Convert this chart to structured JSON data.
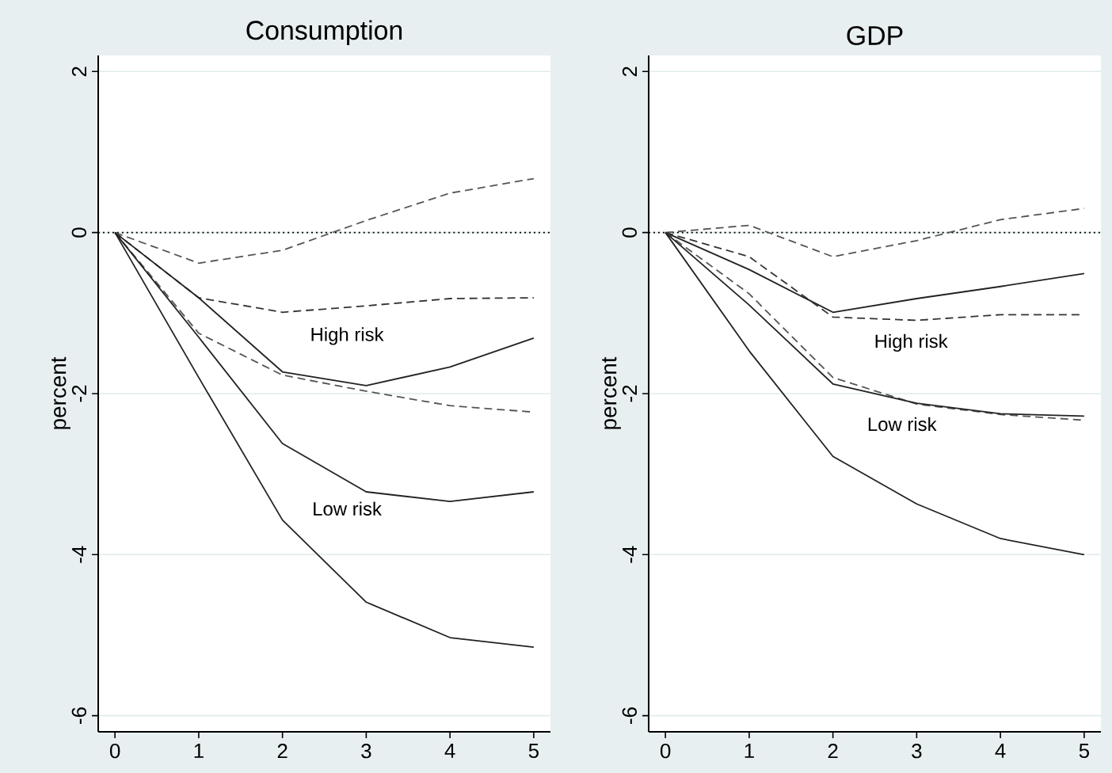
{
  "chart_data": [
    {
      "type": "line",
      "title": "Consumption",
      "ylabel": "percent",
      "x": [
        0,
        1,
        2,
        3,
        4,
        5
      ],
      "xlim": [
        -0.2,
        5.2
      ],
      "ylim": [
        -6.2,
        2.2
      ],
      "xticks": [
        0,
        1,
        2,
        3,
        4,
        5
      ],
      "yticks": [
        -6,
        -4,
        -2,
        0,
        2
      ],
      "grid": "y",
      "series": [
        {
          "color": "#555555",
          "line_style": "dashed",
          "values": [
            0,
            -0.38,
            -0.22,
            0.15,
            0.49,
            0.67
          ]
        },
        {
          "color": "#333333",
          "line_style": "dashed",
          "values": [
            0,
            -0.81,
            -0.99,
            -0.91,
            -0.82,
            -0.81
          ]
        },
        {
          "color": "#222222",
          "line_style": "solid",
          "values": [
            0,
            -0.81,
            -1.73,
            -1.9,
            -1.67,
            -1.31
          ]
        },
        {
          "color": "#555555",
          "line_style": "dashed",
          "values": [
            0,
            -1.25,
            -1.77,
            -1.97,
            -2.15,
            -2.23
          ]
        },
        {
          "color": "#222222",
          "line_style": "solid",
          "values": [
            0,
            -1.3,
            -2.62,
            -3.22,
            -3.34,
            -3.22
          ]
        },
        {
          "color": "#222222",
          "line_style": "solid",
          "values": [
            0,
            -1.8,
            -3.57,
            -4.59,
            -5.03,
            -5.15
          ]
        }
      ],
      "ref_lines": [
        {
          "axis": "y",
          "value": 0,
          "color": "#000000",
          "line_style": "dotted"
        }
      ],
      "annotations": [
        "High risk",
        "Low risk"
      ]
    },
    {
      "type": "line",
      "title": "GDP",
      "ylabel": "percent",
      "x": [
        0,
        1,
        2,
        3,
        4,
        5
      ],
      "xlim": [
        -0.2,
        5.2
      ],
      "ylim": [
        -6.2,
        2.2
      ],
      "xticks": [
        0,
        1,
        2,
        3,
        4,
        5
      ],
      "yticks": [
        -6,
        -4,
        -2,
        0,
        2
      ],
      "grid": "y",
      "series": [
        {
          "color": "#555555",
          "line_style": "dashed",
          "values": [
            0,
            0.09,
            -0.3,
            -0.1,
            0.16,
            0.3
          ]
        },
        {
          "color": "#222222",
          "line_style": "solid",
          "values": [
            0,
            -0.46,
            -0.99,
            -0.82,
            -0.67,
            -0.51
          ]
        },
        {
          "color": "#333333",
          "line_style": "dashed",
          "values": [
            0,
            -0.3,
            -1.05,
            -1.09,
            -1.02,
            -1.02
          ]
        },
        {
          "color": "#555555",
          "line_style": "dashed",
          "values": [
            0,
            -0.76,
            -1.8,
            -2.13,
            -2.26,
            -2.33
          ]
        },
        {
          "color": "#222222",
          "line_style": "solid",
          "values": [
            0,
            -0.9,
            -1.88,
            -2.12,
            -2.25,
            -2.28
          ]
        },
        {
          "color": "#222222",
          "line_style": "solid",
          "values": [
            0,
            -1.47,
            -2.78,
            -3.37,
            -3.8,
            -4.0
          ]
        }
      ],
      "ref_lines": [
        {
          "axis": "y",
          "value": 0,
          "color": "#000000",
          "line_style": "dotted"
        }
      ],
      "annotations": [
        "High risk",
        "Low risk"
      ]
    }
  ]
}
